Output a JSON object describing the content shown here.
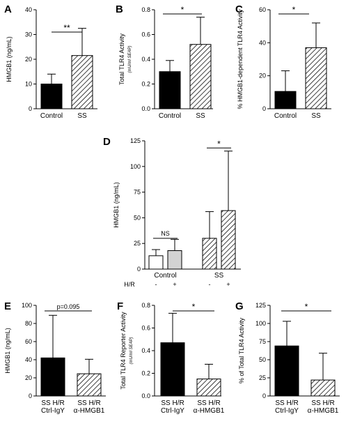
{
  "figure": {
    "background": "#ffffff",
    "colors": {
      "black": "#000000",
      "white": "#ffffff",
      "gray": "#d3d3d3"
    }
  },
  "chart_data": [
    {
      "id": "A",
      "panel": "A",
      "type": "bar",
      "categories": [
        "Control",
        "SS"
      ],
      "values": [
        10,
        21.5
      ],
      "errors": [
        4,
        11
      ],
      "fills": [
        "black",
        "hatch"
      ],
      "ylabel": "HMGB1 (ng/mL)",
      "ylim": [
        0,
        40
      ],
      "yticks": [
        0,
        10,
        20,
        30,
        40
      ],
      "ytick_labels": [
        "0",
        "10",
        "20",
        "30",
        "40"
      ],
      "significance": "**"
    },
    {
      "id": "B",
      "panel": "B",
      "type": "bar",
      "categories": [
        "Control",
        "SS"
      ],
      "values": [
        0.3,
        0.52
      ],
      "errors": [
        0.09,
        0.22
      ],
      "fills": [
        "black",
        "hatch"
      ],
      "ylabel": "Total TLR4 Activity",
      "ylabel_sub": "(mU/ml SEAP)",
      "ylim": [
        0,
        0.8
      ],
      "yticks": [
        0,
        0.2,
        0.4,
        0.6,
        0.8
      ],
      "ytick_labels": [
        "0.0",
        "0.2",
        "0.4",
        "0.6",
        "0.8"
      ],
      "significance": "*"
    },
    {
      "id": "C",
      "panel": "C",
      "type": "bar",
      "categories": [
        "Control",
        "SS"
      ],
      "values": [
        10.5,
        37
      ],
      "errors": [
        12.5,
        15
      ],
      "fills": [
        "black",
        "hatch"
      ],
      "ylabel": "% HMGB1-dependent TLR4 Activity",
      "ylim": [
        0,
        60
      ],
      "yticks": [
        0,
        20,
        40,
        60
      ],
      "ytick_labels": [
        "0",
        "20",
        "40",
        "60"
      ],
      "significance": "*"
    },
    {
      "id": "D",
      "panel": "D",
      "type": "bar",
      "groups": [
        "Control",
        "SS"
      ],
      "hr_label": "H/R",
      "hr_signs": [
        "-",
        "+",
        "-",
        "+"
      ],
      "values": [
        13,
        18,
        30,
        57
      ],
      "errors": [
        6,
        11,
        26,
        58
      ],
      "fills": [
        "white",
        "gray",
        "hatch",
        "hatch"
      ],
      "ylabel": "HMGB1 (ng/mL)",
      "ylim": [
        0,
        125
      ],
      "yticks": [
        0,
        25,
        50,
        75,
        100,
        125
      ],
      "ytick_labels": [
        "0",
        "25",
        "50",
        "75",
        "100",
        "125"
      ],
      "annotations": [
        "NS",
        "*"
      ]
    },
    {
      "id": "E",
      "panel": "E",
      "type": "bar",
      "categories": [
        "SS H/R\nCtrl-IgY",
        "SS H/R\nα-HMGB1"
      ],
      "values": [
        42,
        24.5
      ],
      "errors": [
        47,
        16
      ],
      "fills": [
        "black",
        "hatch"
      ],
      "ylabel": "HMGB1 (ng/mL)",
      "ylim": [
        0,
        100
      ],
      "yticks": [
        0,
        20,
        40,
        60,
        80,
        100
      ],
      "ytick_labels": [
        "0",
        "20",
        "40",
        "60",
        "80",
        "100"
      ],
      "significance": "p=0.095"
    },
    {
      "id": "F",
      "panel": "F",
      "type": "bar",
      "categories": [
        "SS H/R\nCtrl-IgY",
        "SS H/R\nα-HMGB1"
      ],
      "values": [
        0.47,
        0.15
      ],
      "errors": [
        0.26,
        0.13
      ],
      "fills": [
        "black",
        "hatch"
      ],
      "ylabel": "Total TLR4 Reporter Activity",
      "ylabel_sub": "(mU/ml SEAP)",
      "ylim": [
        0,
        0.8
      ],
      "yticks": [
        0,
        0.2,
        0.4,
        0.6,
        0.8
      ],
      "ytick_labels": [
        "0.0",
        "0.2",
        "0.4",
        "0.6",
        "0.8"
      ],
      "significance": "*"
    },
    {
      "id": "G",
      "panel": "G",
      "type": "bar",
      "categories": [
        "SS H/R\nCtrl-IgY",
        "SS H/R\nα-HMGB1"
      ],
      "values": [
        69,
        22
      ],
      "errors": [
        34,
        37
      ],
      "fills": [
        "black",
        "hatch"
      ],
      "ylabel": "% of Total TLR4 Activity",
      "ylim": [
        0,
        125
      ],
      "yticks": [
        0,
        25,
        50,
        75,
        100,
        125
      ],
      "ytick_labels": [
        "0",
        "25",
        "50",
        "75",
        "100",
        "125"
      ],
      "significance": "*"
    }
  ]
}
